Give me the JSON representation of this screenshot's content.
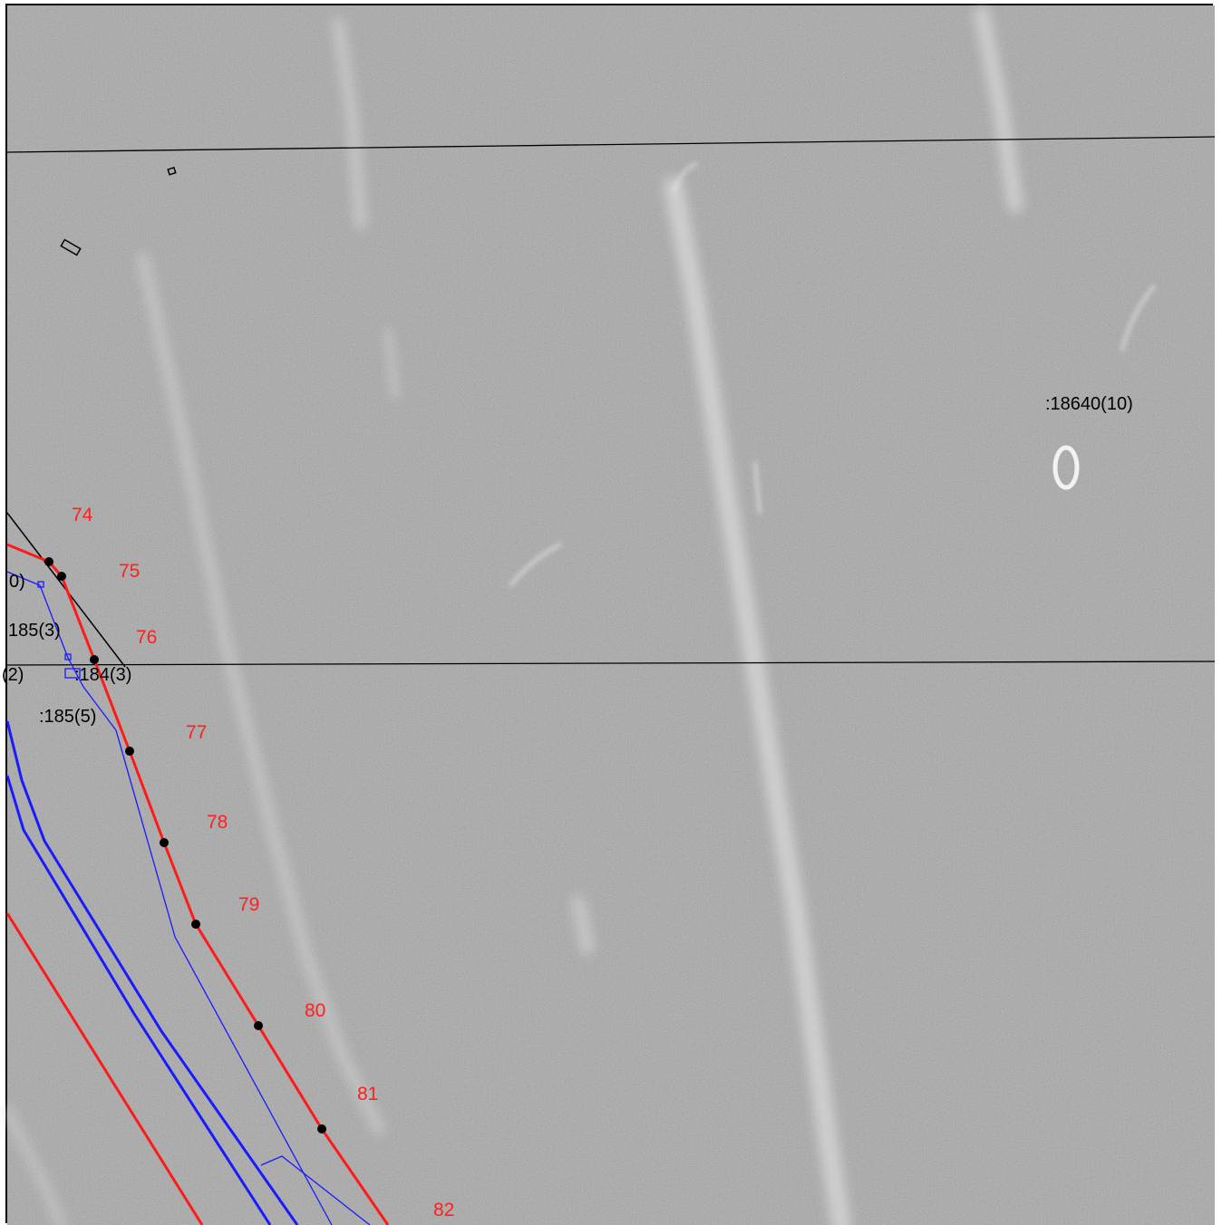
{
  "map": {
    "point_labels": [
      "74",
      "75",
      "76",
      "77",
      "78",
      "79",
      "80",
      "81",
      "82"
    ],
    "parcel_labels": {
      "p18640_10": ":18640(10)",
      "p0": "0)",
      "p185_3": "185(3)",
      "p2": "(2)",
      "p184_3": ":184(3)",
      "p185_5": ":185(5)"
    },
    "colors": {
      "boundary_red": "#ff1a1a",
      "boundary_blue": "#1a1aff",
      "grid_line": "#000000",
      "vertex": "#000000",
      "background": "#8a8a8a"
    }
  }
}
